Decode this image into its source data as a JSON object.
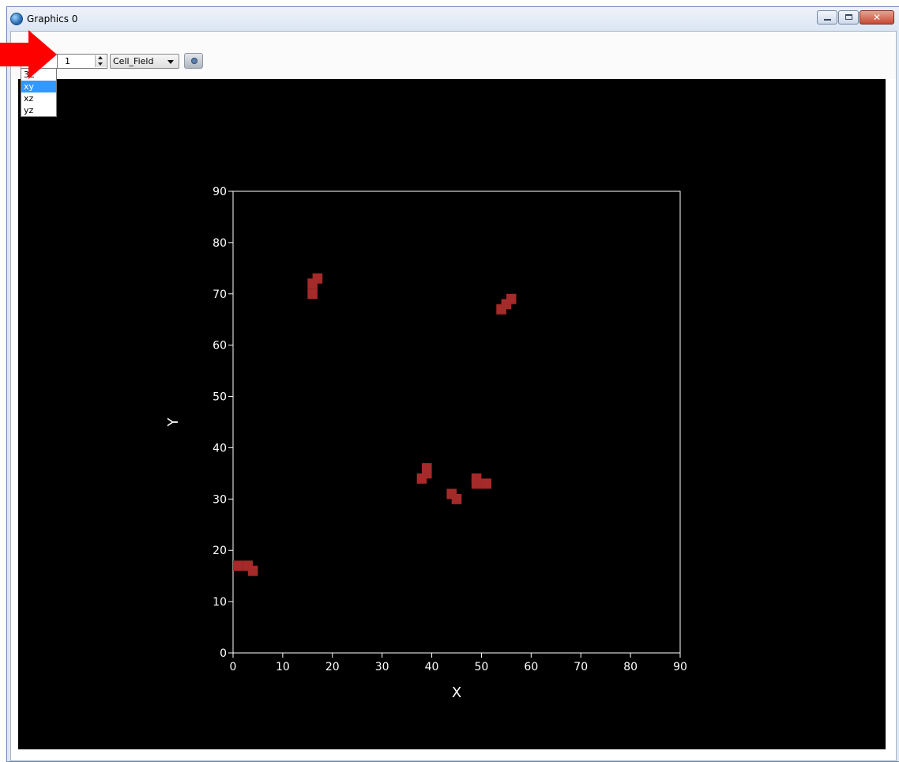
{
  "window": {
    "title": "Graphics 0",
    "controls": [
      "minimize",
      "maximize",
      "close"
    ]
  },
  "toolbar": {
    "view_select": {
      "value": "3D",
      "options": [
        "3D",
        "xy",
        "xz",
        "yz"
      ],
      "highlighted": "xy",
      "visible_value_fragment": "3L"
    },
    "slice_spinbox": {
      "value": "1"
    },
    "field_select": {
      "value": "Cell_Field"
    },
    "camera_button": {
      "icon": "camera-icon"
    }
  },
  "dropdown": {
    "items": [
      {
        "label": "3L",
        "selected": false
      },
      {
        "label": "xy",
        "selected": true
      },
      {
        "label": "xz",
        "selected": false
      },
      {
        "label": "yz",
        "selected": false
      }
    ]
  },
  "annotation": {
    "arrow": "red-arrow",
    "color": "#ff0000"
  },
  "colors": {
    "background": "#000000",
    "axis": "#ffffff",
    "cell": "#a52a2a",
    "accent": "#3399ff"
  },
  "chart_data": {
    "type": "scatter",
    "xlabel": "X",
    "ylabel": "Y",
    "xlim": [
      0,
      90
    ],
    "ylim": [
      0,
      90
    ],
    "xticks": [
      0,
      10,
      20,
      30,
      40,
      50,
      60,
      70,
      80,
      90
    ],
    "yticks": [
      0,
      10,
      20,
      30,
      40,
      50,
      60,
      70,
      80,
      90
    ],
    "grid": false,
    "cell_size": 2,
    "cells": [
      {
        "x": 15,
        "y": 69
      },
      {
        "x": 15,
        "y": 71
      },
      {
        "x": 16,
        "y": 72
      },
      {
        "x": 53,
        "y": 66
      },
      {
        "x": 54,
        "y": 67
      },
      {
        "x": 55,
        "y": 68
      },
      {
        "x": 37,
        "y": 33
      },
      {
        "x": 38,
        "y": 34
      },
      {
        "x": 38,
        "y": 35
      },
      {
        "x": 43,
        "y": 30
      },
      {
        "x": 44,
        "y": 29
      },
      {
        "x": 48,
        "y": 32
      },
      {
        "x": 48,
        "y": 33
      },
      {
        "x": 50,
        "y": 32
      },
      {
        "x": 0,
        "y": 16
      },
      {
        "x": 2,
        "y": 16
      },
      {
        "x": 3,
        "y": 15
      }
    ]
  }
}
